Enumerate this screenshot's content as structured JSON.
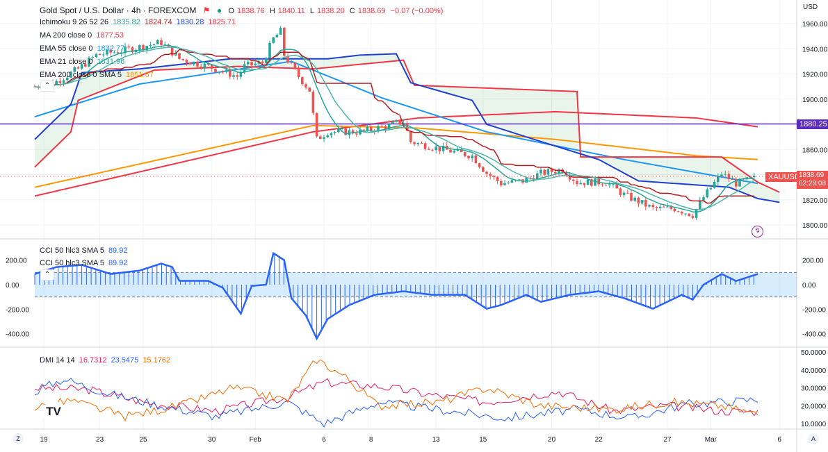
{
  "header": {
    "symbol_title": "Gold Spot / U.S. Dollar · 4h · FOREXCOM",
    "ohlc": {
      "o_label": "O",
      "o": "1838.76",
      "h_label": "H",
      "h": "1840.11",
      "l_label": "L",
      "l": "1838.20",
      "c_label": "C",
      "c": "1838.69",
      "change": "−0.07 (−0.00%)"
    }
  },
  "indicators": [
    {
      "name": "Ichimoku 9 26 52 26",
      "values": [
        "1835.82",
        "1824.74",
        "1830.28",
        "1825.71"
      ],
      "colors": [
        "#26a69a",
        "#b71c1c",
        "#1e3fcf",
        "#f23645"
      ]
    },
    {
      "name": "MA 200 close 0",
      "values": [
        "1877.53"
      ],
      "colors": [
        "#f23645"
      ]
    },
    {
      "name": "EMA 55 close 0",
      "values": [
        "1832.77"
      ],
      "colors": [
        "#2196f3"
      ]
    },
    {
      "name": "EMA 21 close 0",
      "values": [
        "1831.96"
      ],
      "colors": [
        "#26a69a"
      ]
    },
    {
      "name": "EMA 200 close 0 SMA 5",
      "values": [
        "1851.67"
      ],
      "colors": [
        "#ff9800"
      ]
    }
  ],
  "cci_legend": [
    {
      "name": "CCI 50 hlc3 SMA 5",
      "value": "89.92"
    },
    {
      "name": "CCI 50 hlc3 SMA 5",
      "value": "89.92"
    }
  ],
  "dmi_legend": {
    "name": "DMI 14 14",
    "values": [
      "16.7312",
      "23.5475",
      "15.1762"
    ],
    "colors": [
      "#e91e63",
      "#2962ff",
      "#ff6d00"
    ]
  },
  "price_axis": {
    "currency": "USD",
    "ticks": [
      "1960.00",
      "1940.00",
      "1920.00",
      "1900.00",
      "1880.00",
      "1860.00",
      "1840.00",
      "1820.00",
      "1800.00"
    ]
  },
  "tags": {
    "hline": "1880.25",
    "symbol": "XAUUSD",
    "last_price": "1838.69",
    "countdown": "02:28:08"
  },
  "cci_axis": [
    "200.00",
    "0.00",
    "-200.00",
    "-400.00"
  ],
  "dmi_axis": [
    "50.0000",
    "40.0000",
    "30.0000",
    "20.0000",
    "10.0000"
  ],
  "time_axis": [
    "19",
    "23",
    "25",
    "30",
    "Feb",
    "6",
    "8",
    "13",
    "15",
    "20",
    "22",
    "27",
    "Mar",
    "6"
  ],
  "bottom": {
    "left_btn": "Z",
    "right_btn": "A"
  },
  "colors": {
    "up": "#26a69a",
    "down": "#ef5350",
    "hline": "#5b2bbf",
    "cci": "#2962ff"
  },
  "chart_data": {
    "type": "line",
    "title": "Gold Spot / U.S. Dollar · 4h · FOREXCOM",
    "x_unit": "4h bar index",
    "time_ticks_bar": [
      2.5,
      18,
      30,
      49,
      61,
      80,
      93,
      111,
      124,
      143,
      156,
      175,
      187,
      206
    ],
    "price_ylim": [
      1790,
      1970
    ],
    "close_path": [
      [
        0,
        1910
      ],
      [
        6,
        1914
      ],
      [
        12,
        1924
      ],
      [
        17,
        1935
      ],
      [
        25,
        1939
      ],
      [
        35,
        1945
      ],
      [
        40,
        1932
      ],
      [
        48,
        1926
      ],
      [
        56,
        1918
      ],
      [
        58,
        1926
      ],
      [
        63,
        1929
      ],
      [
        66,
        1948
      ],
      [
        68,
        1954
      ],
      [
        69,
        1935
      ],
      [
        73,
        1918
      ],
      [
        76,
        1907
      ],
      [
        78,
        1868
      ],
      [
        81,
        1874
      ],
      [
        90,
        1874
      ],
      [
        98,
        1879
      ],
      [
        102,
        1882
      ],
      [
        104,
        1866
      ],
      [
        113,
        1860
      ],
      [
        121,
        1855
      ],
      [
        125,
        1841
      ],
      [
        129,
        1833
      ],
      [
        135,
        1835
      ],
      [
        140,
        1841
      ],
      [
        146,
        1844
      ],
      [
        150,
        1834
      ],
      [
        158,
        1834
      ],
      [
        163,
        1824
      ],
      [
        171,
        1813
      ],
      [
        177,
        1813
      ],
      [
        182,
        1808
      ],
      [
        185,
        1822
      ],
      [
        190,
        1841
      ],
      [
        194,
        1833
      ],
      [
        199,
        1837
      ]
    ],
    "hline": 1880.25,
    "series": [
      {
        "name": "MA 200",
        "color": "#f23645",
        "points": [
          [
            0,
            1823
          ],
          [
            77,
            1874
          ],
          [
            106,
            1885
          ],
          [
            144,
            1890
          ],
          [
            183,
            1885
          ],
          [
            200,
            1878
          ]
        ]
      },
      {
        "name": "EMA 200",
        "color": "#ff9800",
        "points": [
          [
            0,
            1830
          ],
          [
            77,
            1879
          ],
          [
            106,
            1877
          ],
          [
            144,
            1868
          ],
          [
            183,
            1855
          ],
          [
            200,
            1852
          ]
        ]
      },
      {
        "name": "EMA 55",
        "color": "#2196f3",
        "points": [
          [
            0,
            1886
          ],
          [
            29,
            1912
          ],
          [
            71,
            1930
          ],
          [
            96,
            1901
          ],
          [
            125,
            1874
          ],
          [
            163,
            1852
          ],
          [
            200,
            1833
          ]
        ]
      },
      {
        "name": "Lead 2",
        "color": "#f23645",
        "points": [
          [
            0,
            1846
          ],
          [
            10,
            1874
          ],
          [
            12,
            1899
          ],
          [
            33,
            1923
          ],
          [
            56,
            1926
          ],
          [
            77,
            1924
          ],
          [
            102,
            1931
          ],
          [
            105,
            1911
          ],
          [
            150,
            1906
          ],
          [
            151,
            1854
          ],
          [
            190,
            1854
          ],
          [
            200,
            1834
          ],
          [
            206,
            1826
          ]
        ]
      },
      {
        "name": "Lead 1",
        "color": "#1e3fcf",
        "points": [
          [
            0,
            1868
          ],
          [
            10,
            1896
          ],
          [
            13,
            1921
          ],
          [
            29,
            1924
          ],
          [
            54,
            1932
          ],
          [
            81,
            1932
          ],
          [
            90,
            1935
          ],
          [
            100,
            1936
          ],
          [
            104,
            1913
          ],
          [
            121,
            1899
          ],
          [
            125,
            1880
          ],
          [
            137,
            1869
          ],
          [
            156,
            1852
          ],
          [
            167,
            1835
          ],
          [
            192,
            1830
          ],
          [
            200,
            1821
          ],
          [
            206,
            1818
          ]
        ]
      }
    ],
    "cci": {
      "ylim": [
        -450,
        260
      ],
      "points": [
        [
          0,
          87
        ],
        [
          6,
          144
        ],
        [
          13,
          161
        ],
        [
          21,
          87
        ],
        [
          29,
          115
        ],
        [
          35,
          172
        ],
        [
          38,
          144
        ],
        [
          40,
          31
        ],
        [
          48,
          31
        ],
        [
          52,
          -25
        ],
        [
          57,
          -236
        ],
        [
          60,
          -10
        ],
        [
          64,
          0
        ],
        [
          66,
          257
        ],
        [
          69,
          200
        ],
        [
          71,
          -110
        ],
        [
          75,
          -251
        ],
        [
          78,
          -440
        ],
        [
          81,
          -280
        ],
        [
          87,
          -166
        ],
        [
          94,
          -83
        ],
        [
          102,
          -54
        ],
        [
          110,
          -83
        ],
        [
          119,
          -83
        ],
        [
          125,
          -196
        ],
        [
          129,
          -166
        ],
        [
          136,
          -83
        ],
        [
          140,
          -140
        ],
        [
          148,
          -83
        ],
        [
          156,
          -54
        ],
        [
          163,
          -110
        ],
        [
          171,
          -196
        ],
        [
          179,
          -83
        ],
        [
          182,
          -122
        ],
        [
          185,
          0
        ],
        [
          190,
          87
        ],
        [
          194,
          30
        ],
        [
          200,
          87
        ]
      ]
    },
    "dmi": {
      "ylim": [
        5,
        52
      ],
      "series": [
        {
          "name": "+DI/ADX pink",
          "color": "#e91e63",
          "points": [
            [
              0,
              30
            ],
            [
              15,
              29
            ],
            [
              30,
              22
            ],
            [
              50,
              17
            ],
            [
              70,
              25
            ],
            [
              80,
              33
            ],
            [
              95,
              31
            ],
            [
              110,
              26
            ],
            [
              125,
              22
            ],
            [
              145,
              28
            ],
            [
              160,
              17
            ],
            [
              175,
              20
            ],
            [
              190,
              17
            ],
            [
              200,
              16.7
            ]
          ]
        },
        {
          "name": "blue",
          "color": "#2962ff",
          "points": [
            [
              0,
              28
            ],
            [
              8,
              35
            ],
            [
              20,
              27
            ],
            [
              35,
              20
            ],
            [
              50,
              14
            ],
            [
              70,
              22
            ],
            [
              80,
              10
            ],
            [
              95,
              22
            ],
            [
              115,
              17
            ],
            [
              130,
              13
            ],
            [
              150,
              18
            ],
            [
              165,
              13
            ],
            [
              180,
              21
            ],
            [
              190,
              22
            ],
            [
              200,
              23.5
            ]
          ]
        },
        {
          "name": "orange",
          "color": "#ff6d00",
          "points": [
            [
              0,
              19
            ],
            [
              10,
              23
            ],
            [
              25,
              14
            ],
            [
              40,
              20
            ],
            [
              55,
              30
            ],
            [
              70,
              23
            ],
            [
              78,
              46
            ],
            [
              86,
              36
            ],
            [
              95,
              20
            ],
            [
              112,
              22
            ],
            [
              125,
              30
            ],
            [
              140,
              20
            ],
            [
              160,
              18
            ],
            [
              175,
              22
            ],
            [
              190,
              20
            ],
            [
              200,
              15.2
            ]
          ]
        }
      ]
    }
  }
}
